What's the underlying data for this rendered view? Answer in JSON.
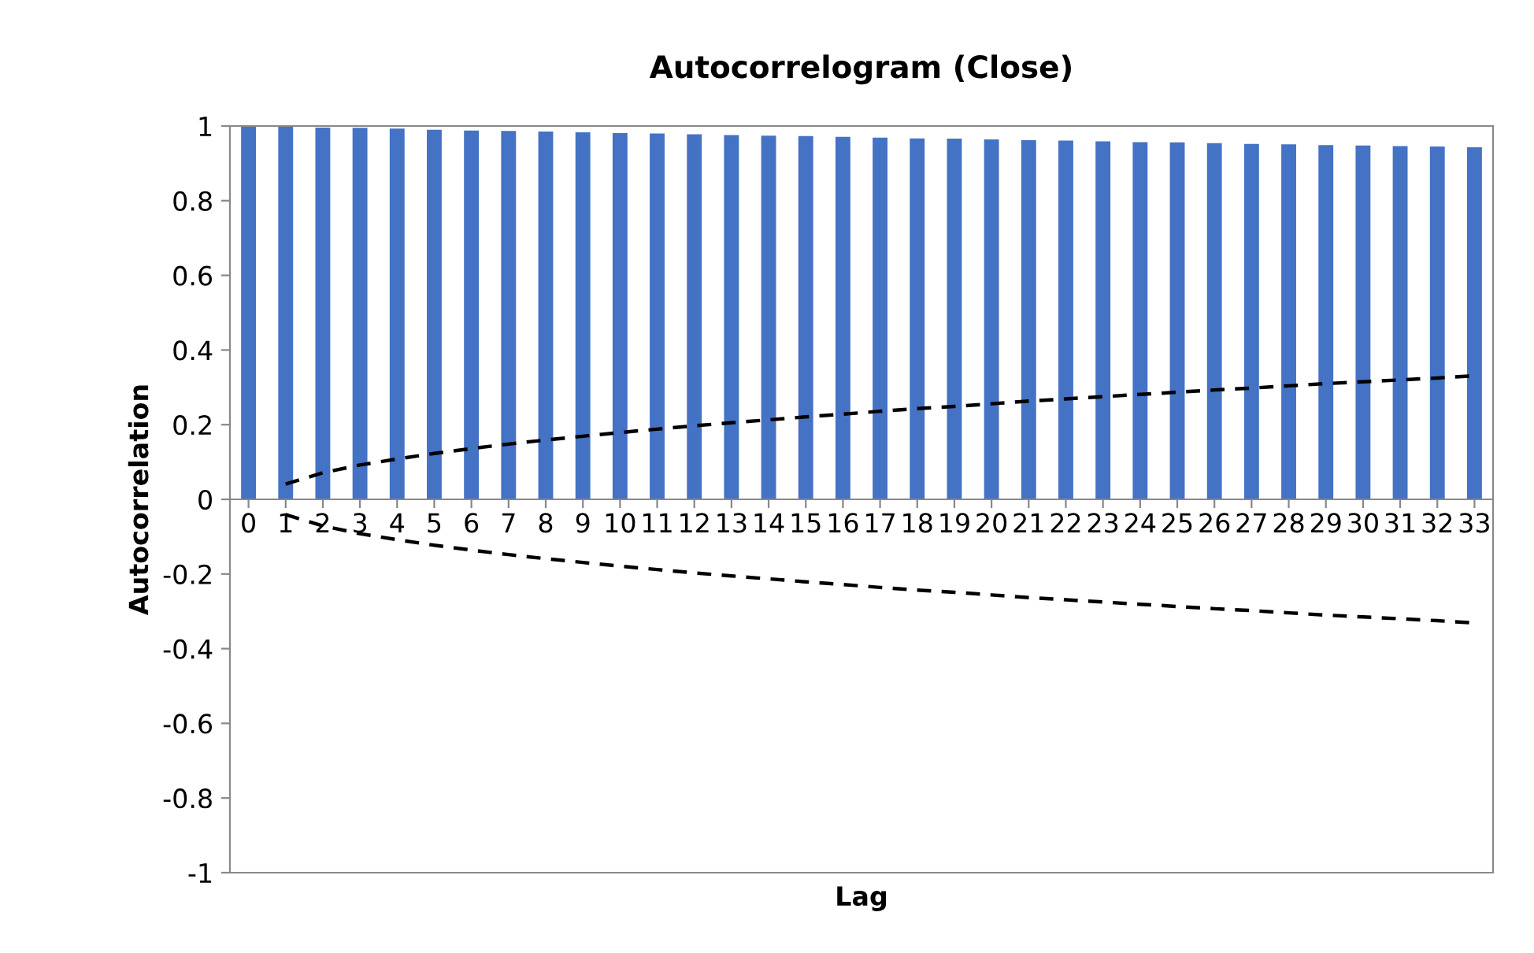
{
  "chart_data": {
    "type": "bar",
    "title": "Autocorrelogram (Close)",
    "xlabel": "Lag",
    "ylabel": "Autocorrelation",
    "categories": [
      "0",
      "1",
      "2",
      "3",
      "4",
      "5",
      "6",
      "7",
      "8",
      "9",
      "10",
      "11",
      "12",
      "13",
      "14",
      "15",
      "16",
      "17",
      "18",
      "19",
      "20",
      "21",
      "22",
      "23",
      "24",
      "25",
      "26",
      "27",
      "28",
      "29",
      "30",
      "31",
      "32",
      "33"
    ],
    "series": [
      {
        "color": "#4472c4",
        "values": [
          1.0,
          0.998,
          0.996,
          0.995,
          0.993,
          0.99,
          0.988,
          0.987,
          0.985,
          0.983,
          0.981,
          0.98,
          0.978,
          0.976,
          0.974,
          0.973,
          0.971,
          0.969,
          0.967,
          0.966,
          0.964,
          0.962,
          0.961,
          0.959,
          0.957,
          0.956,
          0.954,
          0.952,
          0.951,
          0.949,
          0.948,
          0.946,
          0.945,
          0.943
        ]
      },
      {
        "type": "line",
        "color": "#000000",
        "line_style": "dashed",
        "values": [
          null,
          0.041,
          0.071,
          0.092,
          0.108,
          0.123,
          0.136,
          0.148,
          0.159,
          0.169,
          0.179,
          0.188,
          0.197,
          0.205,
          0.213,
          0.221,
          0.228,
          0.236,
          0.243,
          0.249,
          0.256,
          0.263,
          0.269,
          0.275,
          0.281,
          0.287,
          0.293,
          0.298,
          0.304,
          0.31,
          0.315,
          0.32,
          0.325,
          0.331
        ]
      },
      {
        "type": "line",
        "color": "#000000",
        "line_style": "dashed",
        "values": [
          null,
          -0.041,
          -0.071,
          -0.092,
          -0.108,
          -0.123,
          -0.136,
          -0.148,
          -0.159,
          -0.169,
          -0.179,
          -0.188,
          -0.197,
          -0.205,
          -0.213,
          -0.221,
          -0.228,
          -0.236,
          -0.243,
          -0.249,
          -0.256,
          -0.263,
          -0.269,
          -0.275,
          -0.281,
          -0.287,
          -0.293,
          -0.298,
          -0.304,
          -0.31,
          -0.315,
          -0.32,
          -0.325,
          -0.331
        ]
      }
    ],
    "ylim": [
      -1,
      1
    ],
    "yticks": [
      -1,
      -0.8,
      -0.6,
      -0.4,
      -0.2,
      0,
      0.2,
      0.4,
      0.6,
      0.8,
      1
    ],
    "grid": false,
    "legend": false
  }
}
